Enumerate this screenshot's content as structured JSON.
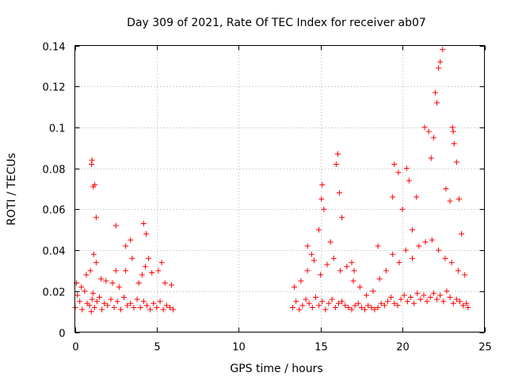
{
  "chart_data": {
    "type": "scatter",
    "title": "Day 309 of 2021, Rate Of TEC Index for receiver ab07",
    "xlabel": "GPS time / hours",
    "ylabel": "ROTI / TECUs",
    "xlim": [
      0,
      25
    ],
    "ylim": [
      0,
      0.14
    ],
    "xticks": [
      "0",
      "5",
      "10",
      "15",
      "20",
      "25"
    ],
    "yticks": [
      "0",
      "0.02",
      "0.04",
      "0.06",
      "0.08",
      "0.1",
      "0.12",
      "0.14"
    ],
    "xtick_values": [
      0,
      5,
      10,
      15,
      20,
      25
    ],
    "ytick_values": [
      0,
      0.02,
      0.04,
      0.06,
      0.08,
      0.1,
      0.12,
      0.14
    ],
    "grid": true,
    "marker": "+",
    "color": "#ff0000",
    "series": [
      {
        "x": [
          0.02,
          0.15,
          0.3,
          0.45,
          0.6,
          0.75,
          0.9,
          1.0,
          1.05,
          1.1,
          1.2,
          1.35,
          1.5,
          1.65,
          1.8,
          2.0,
          2.2,
          2.4,
          2.6,
          2.8,
          3.0,
          3.2,
          3.4,
          3.6,
          3.8,
          4.0,
          4.2,
          4.4,
          4.6,
          4.8,
          5.0,
          5.2,
          5.4,
          5.6,
          5.8,
          6.0,
          0.1,
          0.4,
          0.7,
          0.95,
          1.15,
          1.3,
          1.6,
          1.9,
          2.3,
          2.5,
          2.7,
          3.1,
          3.5,
          3.9,
          4.1,
          4.3,
          4.7,
          5.1,
          5.5,
          5.9,
          1.02,
          1.05,
          1.12,
          1.22,
          1.3,
          2.5,
          3.1,
          3.4,
          4.2,
          4.35,
          4.5,
          5.3,
          13.3,
          13.5,
          13.7,
          13.9,
          14.1,
          14.3,
          14.5,
          14.7,
          14.9,
          15.1,
          15.3,
          15.5,
          15.7,
          15.9,
          16.1,
          16.3,
          16.5,
          16.7,
          16.9,
          17.1,
          17.3,
          17.5,
          17.7,
          17.9,
          18.1,
          18.3,
          18.5,
          18.7,
          18.9,
          19.1,
          19.3,
          19.5,
          19.7,
          19.9,
          20.1,
          20.3,
          20.5,
          20.7,
          20.9,
          21.1,
          21.3,
          21.5,
          21.7,
          21.9,
          22.1,
          22.3,
          22.5,
          22.7,
          22.9,
          23.1,
          23.3,
          23.5,
          23.7,
          23.9,
          24.0,
          13.4,
          13.8,
          14.2,
          14.6,
          15.0,
          15.4,
          15.8,
          16.2,
          16.6,
          17.0,
          17.4,
          17.8,
          18.2,
          18.6,
          19.0,
          19.4,
          19.8,
          20.2,
          20.6,
          21.0,
          21.4,
          21.8,
          22.2,
          22.6,
          23.0,
          23.4,
          23.8,
          14.2,
          14.45,
          14.9,
          15.05,
          15.1,
          15.2,
          15.6,
          15.95,
          16.05,
          16.15,
          16.3,
          16.9,
          17.05,
          18.5,
          19.4,
          19.5,
          19.75,
          20.0,
          20.25,
          20.4,
          20.6,
          20.85,
          21.35,
          21.6,
          21.75,
          21.9,
          22.0,
          22.1,
          22.2,
          22.3,
          22.45,
          22.65,
          22.9,
          23.05,
          23.1,
          23.15,
          23.3,
          23.45,
          23.6
        ],
        "y": [
          0.012,
          0.018,
          0.015,
          0.011,
          0.02,
          0.014,
          0.013,
          0.01,
          0.016,
          0.019,
          0.012,
          0.015,
          0.017,
          0.011,
          0.014,
          0.013,
          0.016,
          0.012,
          0.015,
          0.011,
          0.017,
          0.013,
          0.014,
          0.012,
          0.016,
          0.012,
          0.015,
          0.013,
          0.011,
          0.014,
          0.012,
          0.015,
          0.011,
          0.013,
          0.012,
          0.011,
          0.024,
          0.022,
          0.028,
          0.03,
          0.038,
          0.034,
          0.026,
          0.025,
          0.024,
          0.03,
          0.022,
          0.03,
          0.036,
          0.024,
          0.028,
          0.032,
          0.029,
          0.03,
          0.024,
          0.023,
          0.082,
          0.084,
          0.071,
          0.072,
          0.056,
          0.052,
          0.042,
          0.045,
          0.053,
          0.048,
          0.036,
          0.034,
          0.012,
          0.015,
          0.011,
          0.013,
          0.016,
          0.014,
          0.012,
          0.017,
          0.013,
          0.015,
          0.011,
          0.014,
          0.016,
          0.012,
          0.014,
          0.015,
          0.013,
          0.012,
          0.011,
          0.013,
          0.014,
          0.012,
          0.011,
          0.013,
          0.012,
          0.011,
          0.012,
          0.014,
          0.013,
          0.015,
          0.017,
          0.014,
          0.013,
          0.016,
          0.018,
          0.015,
          0.017,
          0.014,
          0.019,
          0.016,
          0.018,
          0.015,
          0.017,
          0.019,
          0.016,
          0.018,
          0.015,
          0.02,
          0.017,
          0.014,
          0.016,
          0.015,
          0.013,
          0.014,
          0.012,
          0.022,
          0.025,
          0.03,
          0.035,
          0.028,
          0.033,
          0.036,
          0.03,
          0.032,
          0.025,
          0.022,
          0.018,
          0.02,
          0.026,
          0.03,
          0.038,
          0.034,
          0.04,
          0.036,
          0.042,
          0.044,
          0.045,
          0.04,
          0.036,
          0.034,
          0.03,
          0.028,
          0.042,
          0.038,
          0.05,
          0.065,
          0.072,
          0.06,
          0.044,
          0.082,
          0.087,
          0.068,
          0.056,
          0.034,
          0.03,
          0.042,
          0.066,
          0.082,
          0.078,
          0.06,
          0.08,
          0.074,
          0.05,
          0.066,
          0.1,
          0.098,
          0.085,
          0.095,
          0.117,
          0.112,
          0.129,
          0.132,
          0.138,
          0.07,
          0.064,
          0.1,
          0.098,
          0.092,
          0.083,
          0.065,
          0.048
        ]
      }
    ]
  }
}
